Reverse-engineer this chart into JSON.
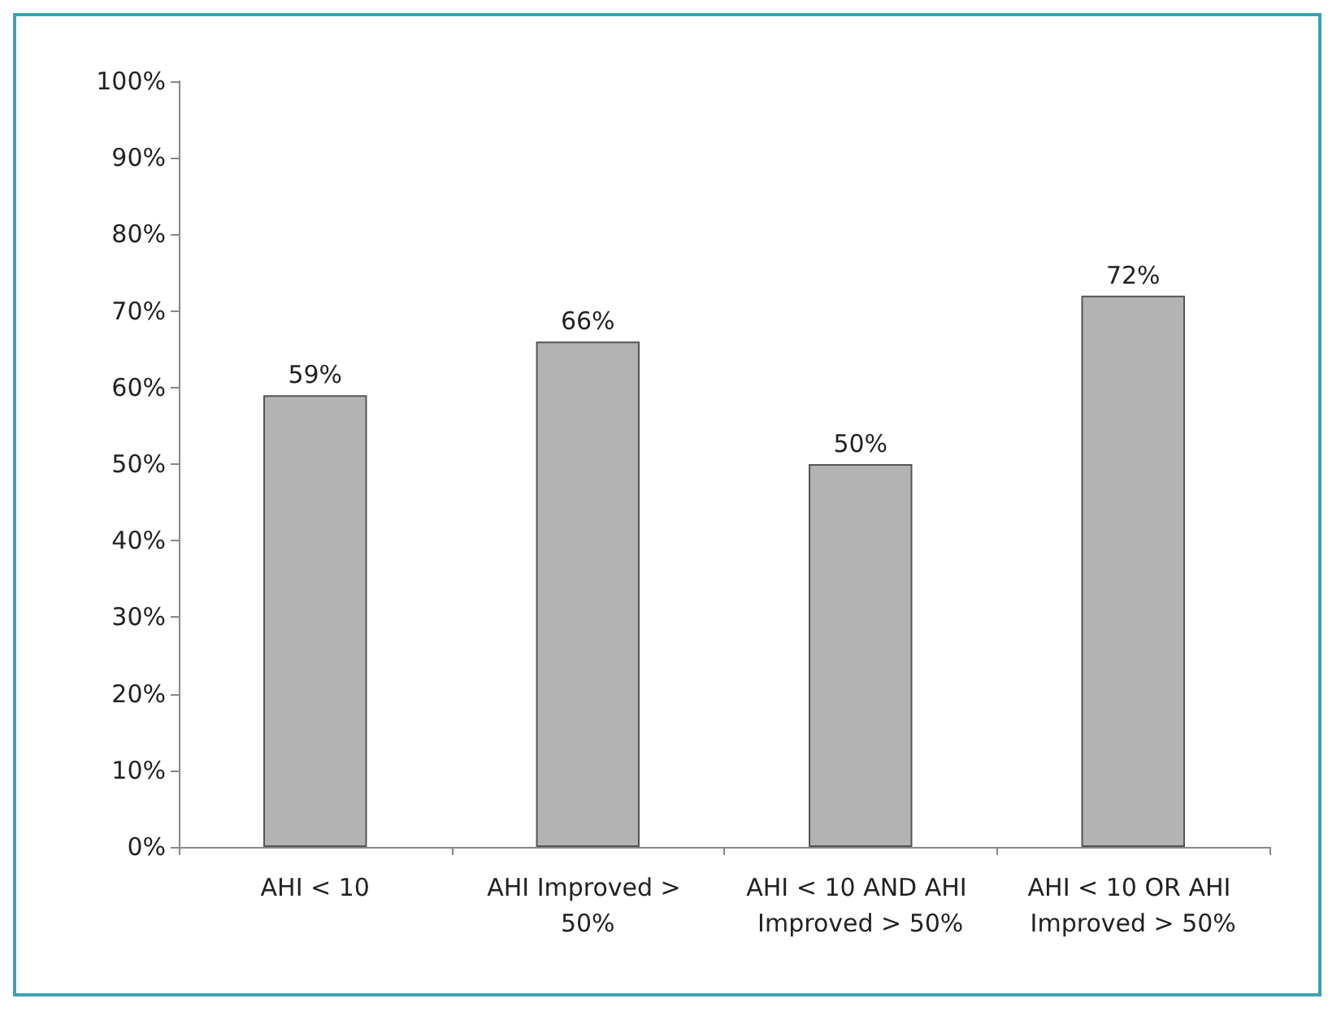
{
  "chart_data": {
    "type": "bar",
    "categories": [
      "AHI < 10",
      "AHI Improved > 50%",
      "AHI < 10 AND AHI Improved > 50%",
      "AHI < 10 OR AHI Improved > 50%"
    ],
    "values": [
      59,
      66,
      50,
      72
    ],
    "value_labels": [
      "59%",
      "66%",
      "50%",
      "72%"
    ],
    "color": "#b3b3b3",
    "ylim": [
      0,
      100
    ],
    "yticks": [
      {
        "value": 0,
        "label": "0%"
      },
      {
        "value": 10,
        "label": "10%"
      },
      {
        "value": 20,
        "label": "20%"
      },
      {
        "value": 30,
        "label": "30%"
      },
      {
        "value": 40,
        "label": "40%"
      },
      {
        "value": 50,
        "label": "50%"
      },
      {
        "value": 60,
        "label": "60%"
      },
      {
        "value": 70,
        "label": "70%"
      },
      {
        "value": 80,
        "label": "80%"
      },
      {
        "value": 90,
        "label": "90%"
      },
      {
        "value": 100,
        "label": "100%"
      }
    ],
    "grid": false
  }
}
